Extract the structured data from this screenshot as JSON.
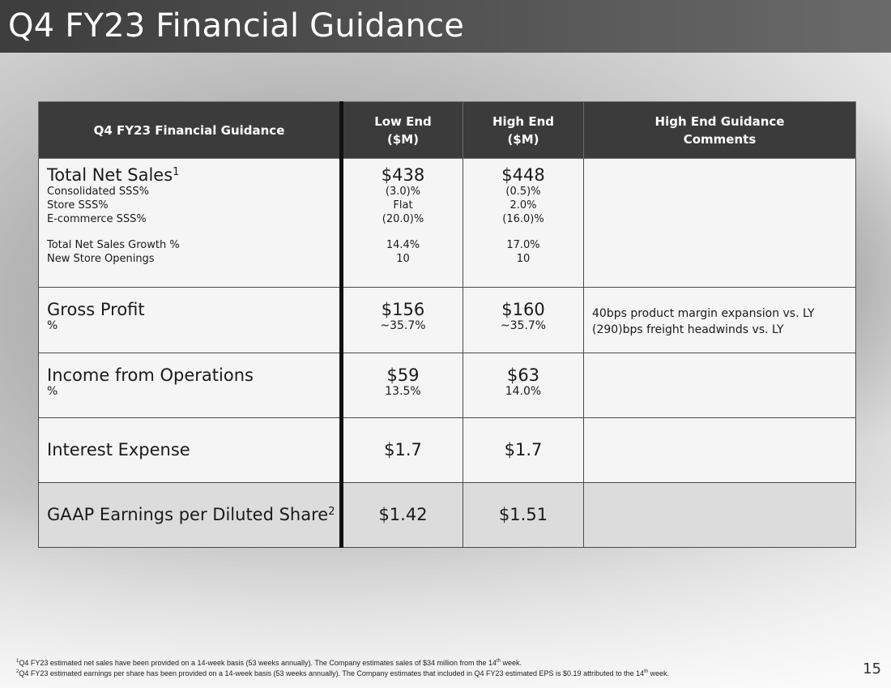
{
  "title": "Q4 FY23 Financial Guidance",
  "table": {
    "headers": {
      "metric": "Q4 FY23 Financial Guidance",
      "low_line1": "Low End",
      "low_line2": "($M)",
      "high_line1": "High End",
      "high_line2": "($M)",
      "comments_line1": "High End Guidance",
      "comments_line2": "Comments"
    },
    "net_sales": {
      "label": "Total Net Sales",
      "label_sup": "1",
      "low": "$438",
      "high": "$448",
      "subrows": [
        {
          "label": "Consolidated SSS%",
          "low": "(3.0)%",
          "high": "(0.5)%"
        },
        {
          "label": "Store SSS%",
          "low": "Flat",
          "high": "2.0%"
        },
        {
          "label": "E-commerce SSS%",
          "low": "(20.0)%",
          "high": "(16.0)%"
        },
        {
          "label": "Total Net Sales Growth %",
          "low": "14.4%",
          "high": "17.0%"
        },
        {
          "label": "New Store Openings",
          "low": "10",
          "high": "10"
        }
      ]
    },
    "gross_profit": {
      "label": "Gross Profit",
      "pct_label": "%",
      "low": "$156",
      "high": "$160",
      "low_pct": "~35.7%",
      "high_pct": "~35.7%",
      "comment1": "40bps product margin expansion vs. LY",
      "comment2": "(290)bps freight headwinds vs. LY"
    },
    "income_ops": {
      "label": "Income from Operations",
      "pct_label": "%",
      "low": "$59",
      "high": "$63",
      "low_pct": "13.5%",
      "high_pct": "14.0%"
    },
    "interest": {
      "label": "Interest Expense",
      "low": "$1.7",
      "high": "$1.7"
    },
    "eps": {
      "label": "GAAP Earnings per Diluted Share",
      "label_sup": "2",
      "low": "$1.42",
      "high": "$1.51"
    }
  },
  "footnotes": {
    "fn1_mark": "1",
    "fn1_a": "Q4 FY23 estimated net sales have been provided on a 14-week basis (53 weeks annually). The Company estimates sales of $34 million from the 14",
    "fn1_sup": "th",
    "fn1_b": " week.",
    "fn2_mark": "2",
    "fn2_a": "Q4 FY23 estimated earnings per share has been provided on a 14-week basis (53 weeks annually). The Company estimates that included in Q4 FY23 estimated EPS is $0.19 attributed to the 14",
    "fn2_sup": "th",
    "fn2_b": " week."
  },
  "page_number": "15"
}
